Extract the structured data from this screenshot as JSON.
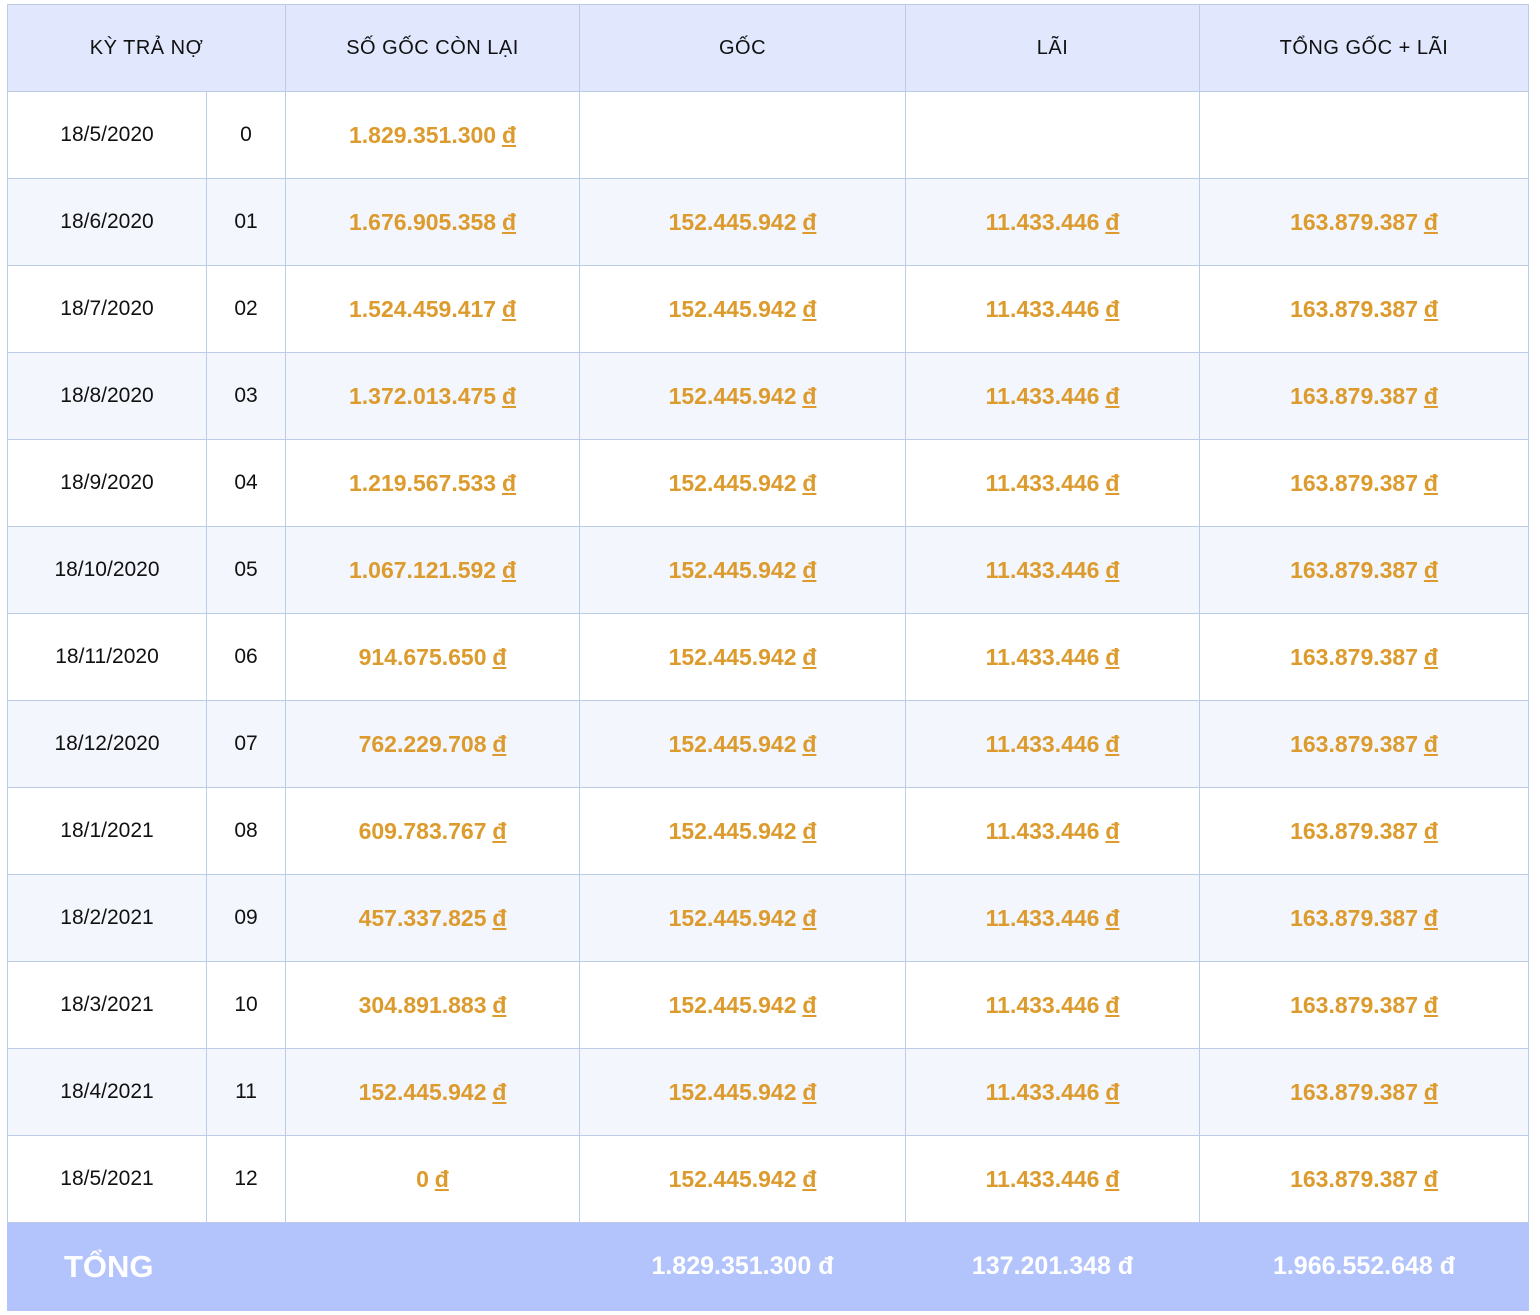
{
  "headers": {
    "period": "KỲ TRẢ NỢ",
    "remaining": "SỐ GỐC CÒN LẠI",
    "principal": "GỐC",
    "interest": "LÃI",
    "total": "TỔNG GỐC + LÃI"
  },
  "currency": "đ",
  "colors": {
    "amount": "#dc9b2c",
    "header_bg": "#e1e7fd",
    "footer_bg": "#b2c4fb",
    "stripe": "#f3f6fd"
  },
  "rows": [
    {
      "date": "18/5/2020",
      "no": "0",
      "remaining": "1.829.351.300",
      "principal": "",
      "interest": "",
      "total": ""
    },
    {
      "date": "18/6/2020",
      "no": "01",
      "remaining": "1.676.905.358",
      "principal": "152.445.942",
      "interest": "11.433.446",
      "total": "163.879.387"
    },
    {
      "date": "18/7/2020",
      "no": "02",
      "remaining": "1.524.459.417",
      "principal": "152.445.942",
      "interest": "11.433.446",
      "total": "163.879.387"
    },
    {
      "date": "18/8/2020",
      "no": "03",
      "remaining": "1.372.013.475",
      "principal": "152.445.942",
      "interest": "11.433.446",
      "total": "163.879.387"
    },
    {
      "date": "18/9/2020",
      "no": "04",
      "remaining": "1.219.567.533",
      "principal": "152.445.942",
      "interest": "11.433.446",
      "total": "163.879.387"
    },
    {
      "date": "18/10/2020",
      "no": "05",
      "remaining": "1.067.121.592",
      "principal": "152.445.942",
      "interest": "11.433.446",
      "total": "163.879.387"
    },
    {
      "date": "18/11/2020",
      "no": "06",
      "remaining": "914.675.650",
      "principal": "152.445.942",
      "interest": "11.433.446",
      "total": "163.879.387"
    },
    {
      "date": "18/12/2020",
      "no": "07",
      "remaining": "762.229.708",
      "principal": "152.445.942",
      "interest": "11.433.446",
      "total": "163.879.387"
    },
    {
      "date": "18/1/2021",
      "no": "08",
      "remaining": "609.783.767",
      "principal": "152.445.942",
      "interest": "11.433.446",
      "total": "163.879.387"
    },
    {
      "date": "18/2/2021",
      "no": "09",
      "remaining": "457.337.825",
      "principal": "152.445.942",
      "interest": "11.433.446",
      "total": "163.879.387"
    },
    {
      "date": "18/3/2021",
      "no": "10",
      "remaining": "304.891.883",
      "principal": "152.445.942",
      "interest": "11.433.446",
      "total": "163.879.387"
    },
    {
      "date": "18/4/2021",
      "no": "11",
      "remaining": "152.445.942",
      "principal": "152.445.942",
      "interest": "11.433.446",
      "total": "163.879.387"
    },
    {
      "date": "18/5/2021",
      "no": "12",
      "remaining": "0",
      "principal": "152.445.942",
      "interest": "11.433.446",
      "total": "163.879.387"
    }
  ],
  "totals": {
    "label": "TỔNG",
    "principal": "1.829.351.300 đ",
    "interest": "137.201.348 đ",
    "total": "1.966.552.648 đ"
  }
}
